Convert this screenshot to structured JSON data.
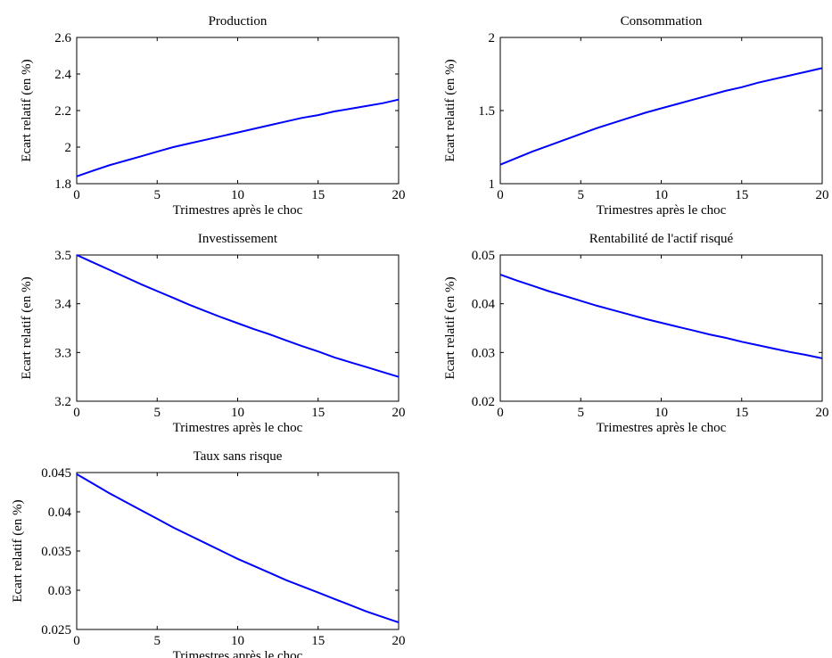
{
  "chart_data": [
    {
      "type": "line",
      "title": "Production",
      "xlabel": "Trimestres après le choc",
      "ylabel": "Ecart relatif (en %)",
      "xlim": [
        0,
        20
      ],
      "ylim": [
        1.8,
        2.6
      ],
      "xticks": [
        "0",
        "5",
        "10",
        "15",
        "20"
      ],
      "yticks": [
        "1.8",
        "2",
        "2.2",
        "2.4",
        "2.6"
      ],
      "color": "#0000ff",
      "x": [
        0,
        1,
        2,
        3,
        4,
        5,
        6,
        7,
        8,
        9,
        10,
        11,
        12,
        13,
        14,
        15,
        16,
        17,
        18,
        19,
        20
      ],
      "y": [
        1.84,
        1.87,
        1.9,
        1.925,
        1.95,
        1.975,
        2.0,
        2.02,
        2.04,
        2.06,
        2.08,
        2.1,
        2.12,
        2.14,
        2.16,
        2.175,
        2.195,
        2.21,
        2.225,
        2.24,
        2.26
      ]
    },
    {
      "type": "line",
      "title": "Consommation",
      "xlabel": "Trimestres après le choc",
      "ylabel": "Ecart relatif (en %)",
      "xlim": [
        0,
        20
      ],
      "ylim": [
        1,
        2
      ],
      "xticks": [
        "0",
        "5",
        "10",
        "15",
        "20"
      ],
      "yticks": [
        "1",
        "1.5",
        "2"
      ],
      "color": "#0000ff",
      "x": [
        0,
        1,
        2,
        3,
        4,
        5,
        6,
        7,
        8,
        9,
        10,
        11,
        12,
        13,
        14,
        15,
        16,
        17,
        18,
        19,
        20
      ],
      "y": [
        1.13,
        1.175,
        1.22,
        1.26,
        1.3,
        1.34,
        1.38,
        1.415,
        1.45,
        1.485,
        1.515,
        1.545,
        1.575,
        1.605,
        1.635,
        1.66,
        1.69,
        1.715,
        1.74,
        1.765,
        1.79
      ]
    },
    {
      "type": "line",
      "title": "Investissement",
      "xlabel": "Trimestres après le choc",
      "ylabel": "Ecart relatif (en %)",
      "xlim": [
        0,
        20
      ],
      "ylim": [
        3.2,
        3.5
      ],
      "xticks": [
        "0",
        "5",
        "10",
        "15",
        "20"
      ],
      "yticks": [
        "3.2",
        "3.3",
        "3.4",
        "3.5"
      ],
      "color": "#0000ff",
      "x": [
        0,
        1,
        2,
        3,
        4,
        5,
        6,
        7,
        8,
        9,
        10,
        11,
        12,
        13,
        14,
        15,
        16,
        17,
        18,
        19,
        20
      ],
      "y": [
        3.5,
        3.485,
        3.47,
        3.455,
        3.44,
        3.426,
        3.412,
        3.398,
        3.385,
        3.372,
        3.36,
        3.348,
        3.337,
        3.325,
        3.313,
        3.302,
        3.29,
        3.28,
        3.27,
        3.26,
        3.25
      ]
    },
    {
      "type": "line",
      "title": "Rentabilité de l'actif risqué",
      "xlabel": "Trimestres après le choc",
      "ylabel": "Ecart relatif (en %)",
      "xlim": [
        0,
        20
      ],
      "ylim": [
        0.02,
        0.05
      ],
      "xticks": [
        "0",
        "5",
        "10",
        "15",
        "20"
      ],
      "yticks": [
        "0.02",
        "0.03",
        "0.04",
        "0.05"
      ],
      "color": "#0000ff",
      "x": [
        0,
        1,
        2,
        3,
        4,
        5,
        6,
        7,
        8,
        9,
        10,
        11,
        12,
        13,
        14,
        15,
        16,
        17,
        18,
        19,
        20
      ],
      "y": [
        0.046,
        0.0448,
        0.0437,
        0.0426,
        0.0416,
        0.0406,
        0.0396,
        0.0387,
        0.0378,
        0.0369,
        0.0361,
        0.0353,
        0.0345,
        0.0337,
        0.033,
        0.0322,
        0.0315,
        0.0308,
        0.0301,
        0.0295,
        0.0288
      ]
    },
    {
      "type": "line",
      "title": "Taux sans risque",
      "xlabel": "Trimestres après le choc",
      "ylabel": "Ecart relatif (en %)",
      "xlim": [
        0,
        20
      ],
      "ylim": [
        0.025,
        0.045
      ],
      "xticks": [
        "0",
        "5",
        "10",
        "15",
        "20"
      ],
      "yticks": [
        "0.025",
        "0.03",
        "0.035",
        "0.04",
        "0.045"
      ],
      "color": "#0000ff",
      "x": [
        0,
        1,
        2,
        3,
        4,
        5,
        6,
        7,
        8,
        9,
        10,
        11,
        12,
        13,
        14,
        15,
        16,
        17,
        18,
        19,
        20
      ],
      "y": [
        0.0448,
        0.0436,
        0.0424,
        0.0413,
        0.0402,
        0.0391,
        0.038,
        0.037,
        0.036,
        0.035,
        0.034,
        0.0331,
        0.0322,
        0.0313,
        0.0305,
        0.0297,
        0.0289,
        0.0281,
        0.0273,
        0.0266,
        0.0259
      ]
    }
  ]
}
